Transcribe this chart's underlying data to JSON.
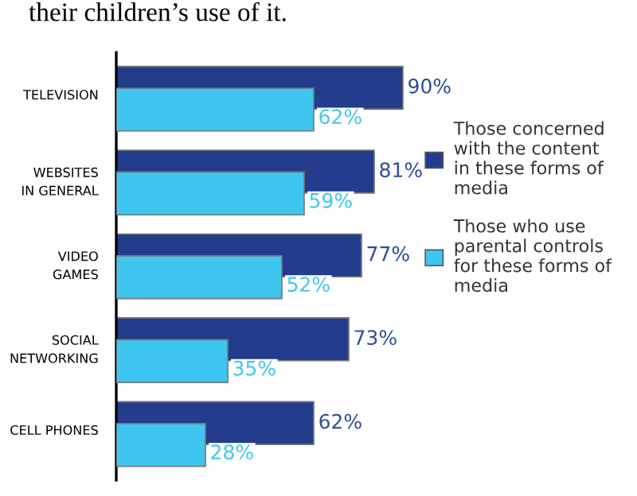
{
  "chart_data": {
    "type": "bar",
    "orientation": "horizontal",
    "title": "their children’s use of it.",
    "categories": [
      "TELEVISION",
      "WEBSITES\nIN GENERAL",
      "VIDEO\nGAMES",
      "SOCIAL\nNETWORKING",
      "CELL PHONES"
    ],
    "series": [
      {
        "name": "Those concerned\nwith the content\nin these forms of\nmedia",
        "color": "#233d8c",
        "values": [
          90,
          81,
          77,
          73,
          62
        ],
        "value_labels": [
          "90%",
          "81%",
          "77%",
          "73%",
          "62%"
        ]
      },
      {
        "name": "Those who use\nparental controls\nfor these forms of\nmedia",
        "color": "#3fc6f0",
        "values": [
          62,
          59,
          52,
          35,
          28
        ],
        "value_labels": [
          "62%",
          "59%",
          "52%",
          "35%",
          "28%"
        ]
      }
    ],
    "legend": "right",
    "grid": false
  }
}
